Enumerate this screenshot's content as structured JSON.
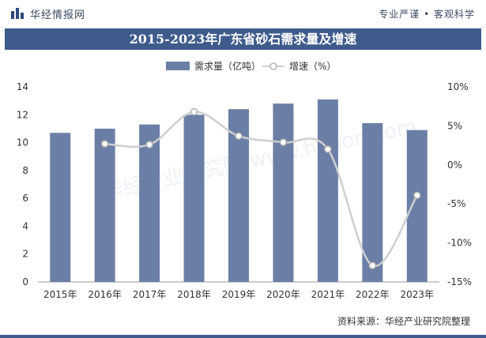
{
  "header": {
    "brand": "华经情报网",
    "slogan": "专业严谨 • 客观科学"
  },
  "title": "2015-2023年广东省砂石需求量及增速",
  "footer": {
    "source": "资料来源：华经产业研究院整理"
  },
  "watermark": "华经产业研究院 www.huaon.com",
  "chart_data": {
    "type": "bar",
    "title": "2015-2023年广东省砂石需求量及增速",
    "categories": [
      "2015年",
      "2016年",
      "2017年",
      "2018年",
      "2019年",
      "2020年",
      "2021年",
      "2022年",
      "2023年"
    ],
    "series": [
      {
        "name": "需求量（亿吨）",
        "type": "bar",
        "axis": "left",
        "color": "#6b7fa6",
        "values": [
          10.7,
          11.0,
          11.3,
          12.0,
          12.4,
          12.8,
          13.1,
          11.4,
          10.9
        ]
      },
      {
        "name": "增速（%）",
        "type": "line",
        "axis": "right",
        "color": "#cfcfcf",
        "values": [
          null,
          2.7,
          2.6,
          6.8,
          3.7,
          2.9,
          2.0,
          -12.9,
          -3.9
        ]
      }
    ],
    "left_axis": {
      "min": 0,
      "max": 14,
      "ticks": [
        "0",
        "2",
        "4",
        "6",
        "8",
        "10",
        "12",
        "14"
      ]
    },
    "right_axis": {
      "min": -15,
      "max": 10,
      "ticks": [
        "-15%",
        "-10%",
        "-5%",
        "0%",
        "5%",
        "10%"
      ]
    },
    "legend_position": "top",
    "grid": false
  }
}
